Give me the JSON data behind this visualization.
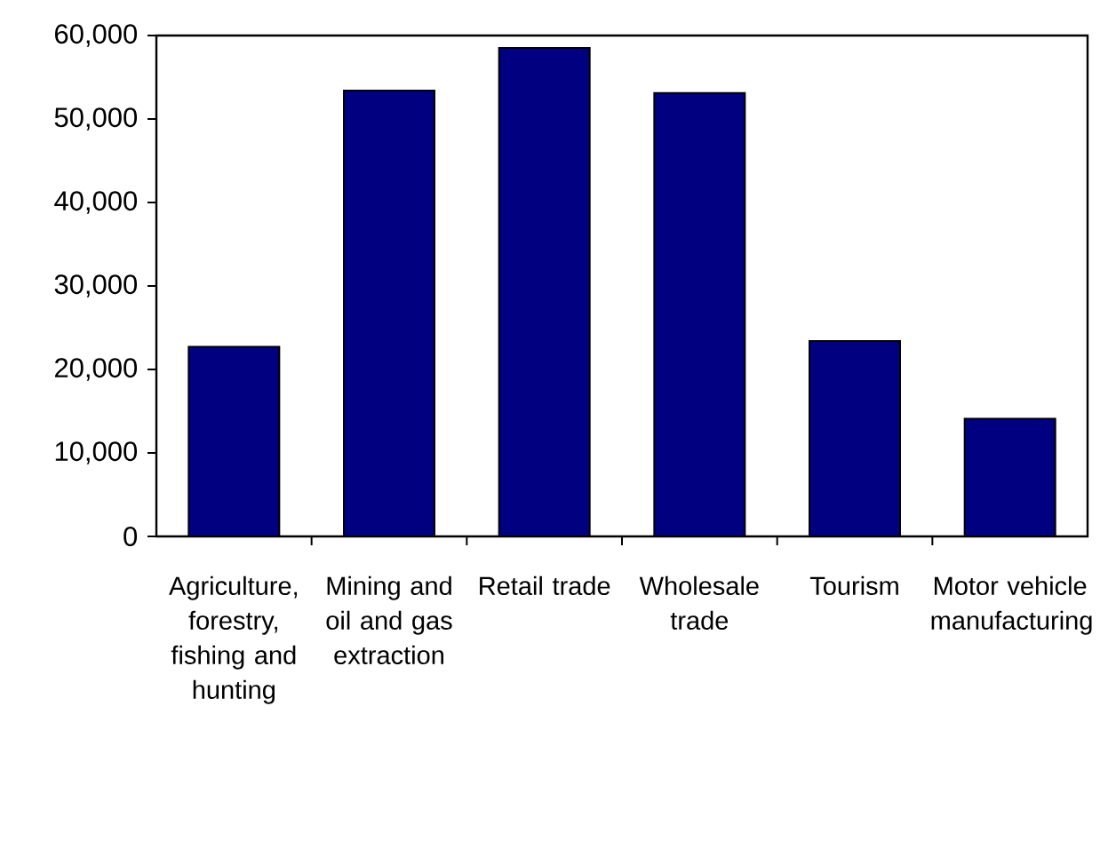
{
  "chart_data": {
    "type": "bar",
    "categories": [
      "Agriculture, forestry, fishing and hunting",
      "Mining and oil and gas extraction",
      "Retail trade",
      "Wholesale trade",
      "Tourism",
      "Motor vehicle manufacturing"
    ],
    "values": [
      22700,
      53400,
      58500,
      53100,
      23400,
      14100
    ],
    "color": "#000080",
    "ylim": [
      0,
      60000
    ],
    "yticks": [
      {
        "value": 0,
        "label": "0"
      },
      {
        "value": 10000,
        "label": "10,000"
      },
      {
        "value": 20000,
        "label": "20,000"
      },
      {
        "value": 30000,
        "label": "30,000"
      },
      {
        "value": 40000,
        "label": "40,000"
      },
      {
        "value": 50000,
        "label": "50,000"
      },
      {
        "value": 60000,
        "label": "60,000"
      }
    ],
    "grid": false
  }
}
